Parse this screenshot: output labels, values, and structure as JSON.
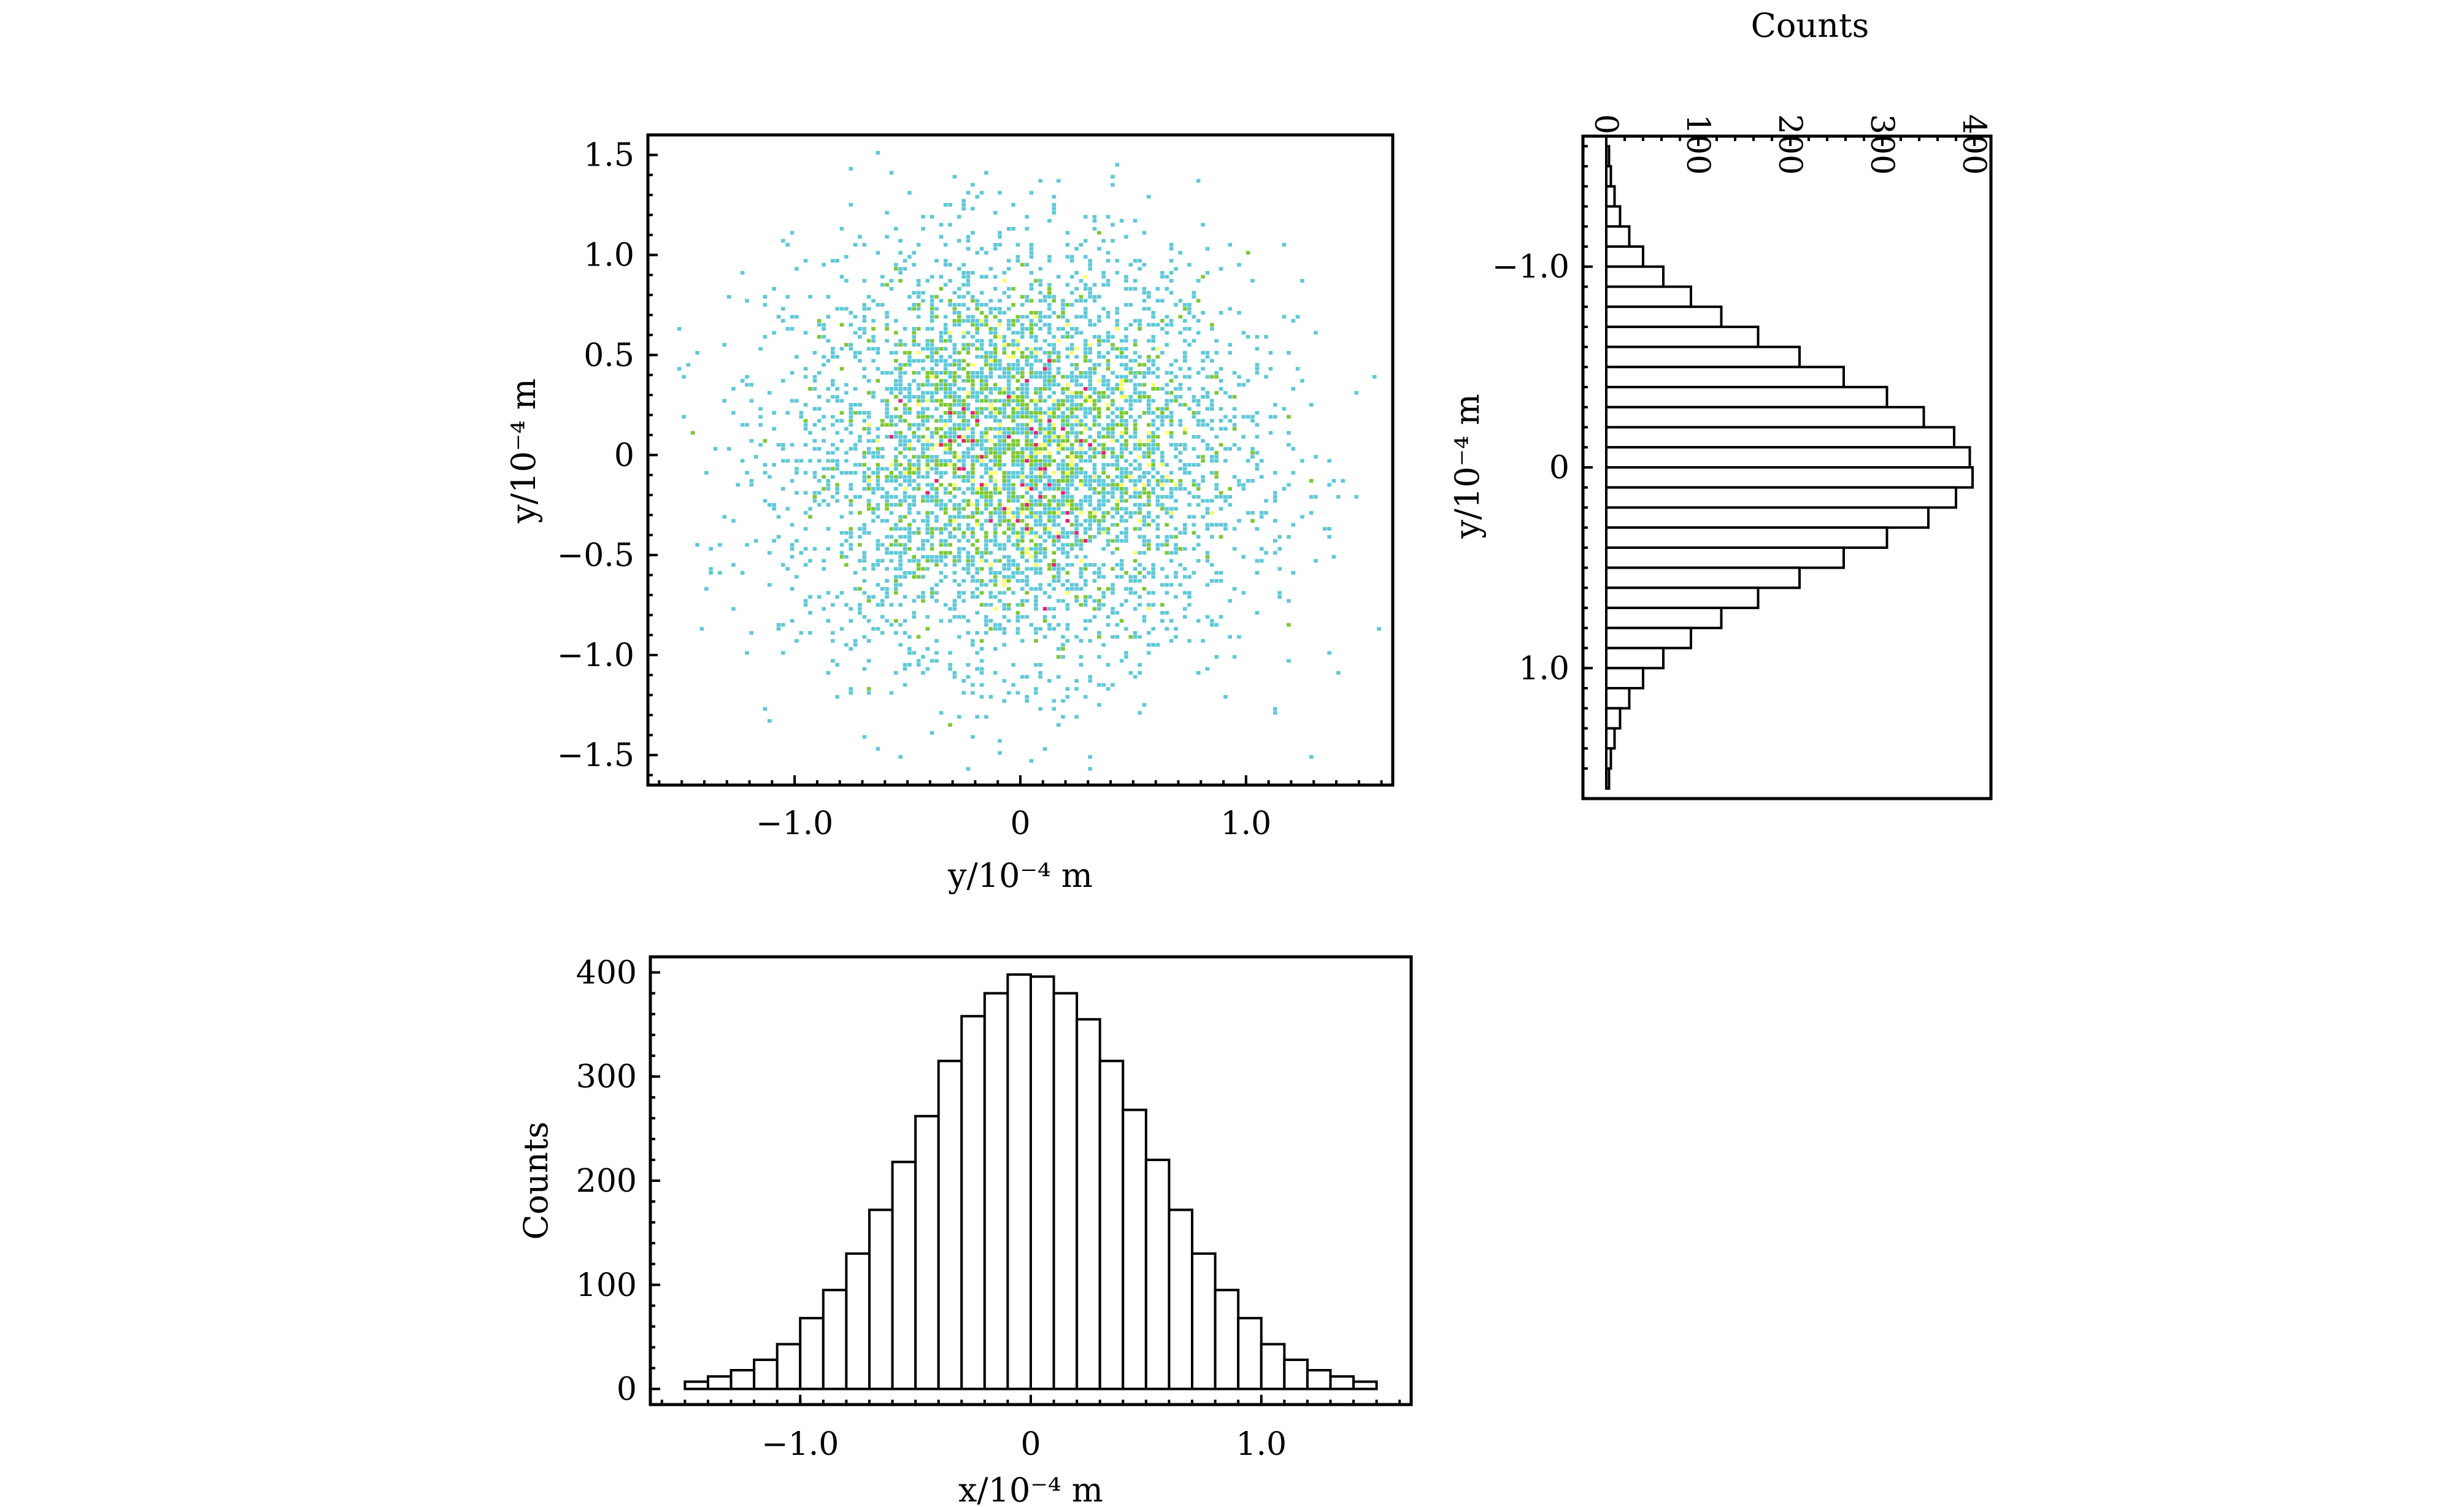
{
  "chart_data": [
    {
      "id": "scatter",
      "type": "scatter",
      "title": "",
      "xlabel": "y/10⁻⁴ m",
      "ylabel": "y/10⁻⁴ m",
      "xlim": [
        -1.65,
        1.65
      ],
      "ylim": [
        -1.65,
        1.6
      ],
      "xticks": [
        {
          "v": -1.0,
          "label": "−1.0"
        },
        {
          "v": 0,
          "label": "0"
        },
        {
          "v": 1.0,
          "label": "1.0"
        }
      ],
      "yticks": [
        {
          "v": -1.5,
          "label": "−1.5"
        },
        {
          "v": -1.0,
          "label": "−1.0"
        },
        {
          "v": -0.5,
          "label": "−0.5"
        },
        {
          "v": 0,
          "label": "0"
        },
        {
          "v": 0.5,
          "label": "0.5"
        },
        {
          "v": 1.0,
          "label": "1.0"
        },
        {
          "v": 1.5,
          "label": "1.5"
        }
      ],
      "distribution": {
        "kind": "2d-gaussian-histogram",
        "sigma_x": 0.5,
        "sigma_y": 0.5,
        "samples": 5000,
        "bin_width": 0.02
      },
      "colors": {
        "low": "#5ec8d8",
        "mid": "#7cc832",
        "high": "#ffff66",
        "peak": "#e0236e"
      }
    },
    {
      "id": "right-hist",
      "type": "bar",
      "orientation": "horizontal",
      "title": "",
      "xlabel": "Counts",
      "ylabel": "y/10⁻⁴ m",
      "xlim": [
        0,
        415
      ],
      "ylim": [
        -1.65,
        1.65
      ],
      "xticks": [
        {
          "v": 0,
          "label": "0"
        },
        {
          "v": 100,
          "label": "100"
        },
        {
          "v": 200,
          "label": "200"
        },
        {
          "v": 300,
          "label": "300"
        },
        {
          "v": 400,
          "label": "400"
        }
      ],
      "yticks": [
        {
          "v": -1.0,
          "label": "−1.0"
        },
        {
          "v": 0,
          "label": "0"
        },
        {
          "v": 1.0,
          "label": "1.0"
        }
      ],
      "bin_width": 0.1,
      "bin_centers": [
        -1.55,
        -1.45,
        -1.35,
        -1.25,
        -1.15,
        -1.05,
        -0.95,
        -0.85,
        -0.75,
        -0.65,
        -0.55,
        -0.45,
        -0.35,
        -0.25,
        -0.15,
        -0.05,
        0.05,
        0.15,
        0.25,
        0.35,
        0.45,
        0.55,
        0.65,
        0.75,
        0.85,
        0.95,
        1.05,
        1.15,
        1.25,
        1.35,
        1.45,
        1.55
      ],
      "values": [
        3,
        5,
        9,
        15,
        25,
        40,
        62,
        92,
        125,
        165,
        210,
        258,
        305,
        345,
        378,
        395,
        398,
        380,
        350,
        305,
        258,
        210,
        165,
        125,
        92,
        62,
        40,
        25,
        15,
        9,
        5,
        3
      ]
    },
    {
      "id": "bottom-hist",
      "type": "bar",
      "title": "",
      "xlabel": "x/10⁻⁴ m",
      "ylabel": "Counts",
      "xlim": [
        -1.65,
        1.65
      ],
      "ylim": [
        -15,
        415
      ],
      "xticks": [
        {
          "v": -1.0,
          "label": "−1.0"
        },
        {
          "v": 0,
          "label": "0"
        },
        {
          "v": 1.0,
          "label": "1.0"
        }
      ],
      "yticks": [
        {
          "v": 0,
          "label": "0"
        },
        {
          "v": 100,
          "label": "100"
        },
        {
          "v": 200,
          "label": "200"
        },
        {
          "v": 300,
          "label": "300"
        },
        {
          "v": 400,
          "label": "400"
        }
      ],
      "bin_width": 0.1,
      "bin_centers": [
        -1.45,
        -1.35,
        -1.25,
        -1.15,
        -1.05,
        -0.95,
        -0.85,
        -0.75,
        -0.65,
        -0.55,
        -0.45,
        -0.35,
        -0.25,
        -0.15,
        -0.05,
        0.05,
        0.15,
        0.25,
        0.35,
        0.45,
        0.55,
        0.65,
        0.75,
        0.85,
        0.95,
        1.05,
        1.15,
        1.25,
        1.35,
        1.45
      ],
      "values": [
        7,
        12,
        18,
        28,
        43,
        68,
        95,
        130,
        172,
        218,
        262,
        315,
        358,
        380,
        398,
        396,
        380,
        355,
        315,
        268,
        220,
        172,
        130,
        95,
        68,
        43,
        28,
        18,
        12,
        7
      ]
    }
  ]
}
